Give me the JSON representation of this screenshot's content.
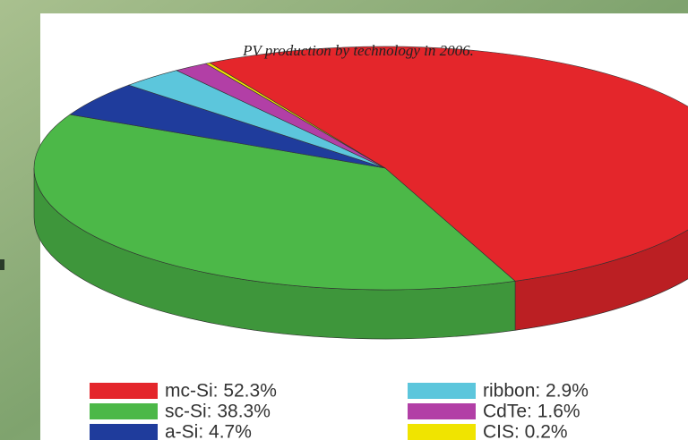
{
  "chart_data": {
    "type": "pie",
    "title": "PV production by technology in 2006.",
    "categories": [
      "mc-Si: 52.3%",
      "sc-Si: 38.3%",
      "a-Si: 4.7%",
      "ribbon: 2.9%",
      "CdTe: 1.6%",
      "CIS: 0.2%"
    ],
    "values": [
      52.3,
      38.3,
      4.7,
      2.9,
      1.6,
      0.2
    ],
    "colors": [
      "#e4262b",
      "#4cb848",
      "#1f3c9c",
      "#5cc6dc",
      "#b23fa6",
      "#f0e400"
    ],
    "legend": "bottom"
  }
}
